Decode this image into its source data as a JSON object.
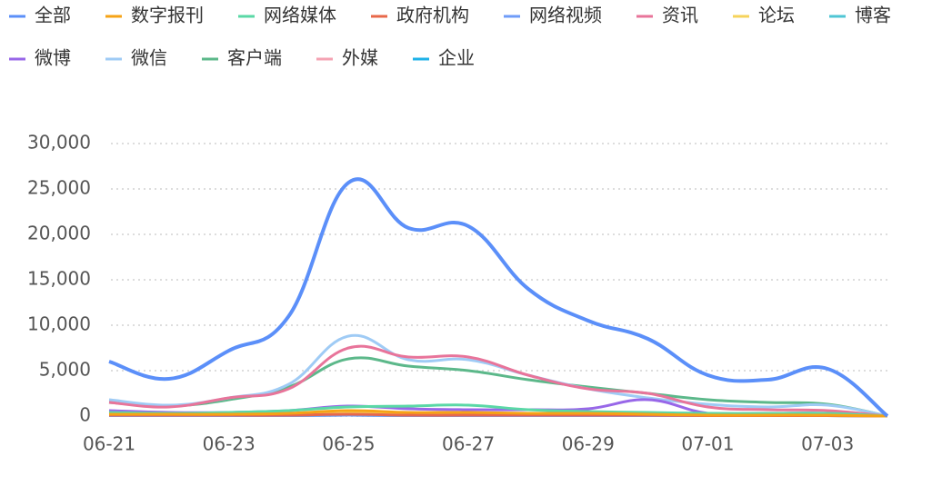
{
  "chart_data": {
    "type": "line",
    "categories": [
      "06-21",
      null,
      "06-23",
      null,
      "06-25",
      null,
      "06-27",
      null,
      "06-29",
      null,
      "07-01",
      null,
      "07-03",
      null
    ],
    "ylim": [
      0,
      30000
    ],
    "yticks": [
      0,
      {
        "value": 5000,
        "label": "5,000"
      },
      {
        "value": 10000,
        "label": "10,000"
      },
      {
        "value": 15000,
        "label": "15,000"
      },
      {
        "value": 20000,
        "label": "20,000"
      },
      {
        "value": 25000,
        "label": "25,000"
      },
      {
        "value": 30000,
        "label": "30,000"
      }
    ],
    "grid": true,
    "series": [
      {
        "name": "全部",
        "color": "#5b8ff9",
        "values": [
          6000,
          4100,
          7200,
          11000,
          25700,
          20700,
          20900,
          14000,
          10500,
          8500,
          4500,
          4000,
          5200,
          0
        ]
      },
      {
        "name": "数字报刊",
        "color": "#f6a316",
        "values": [
          200,
          200,
          200,
          300,
          600,
          400,
          400,
          300,
          300,
          200,
          100,
          100,
          100,
          0
        ]
      },
      {
        "name": "网络媒体",
        "color": "#5ad8a6",
        "values": [
          400,
          300,
          400,
          600,
          1000,
          1100,
          1200,
          700,
          500,
          400,
          300,
          300,
          300,
          0
        ]
      },
      {
        "name": "政府机构",
        "color": "#e8684a",
        "values": [
          100,
          100,
          100,
          100,
          200,
          100,
          100,
          100,
          100,
          100,
          50,
          50,
          50,
          0
        ]
      },
      {
        "name": "网络视频",
        "color": "#6f9cf8",
        "values": [
          50,
          50,
          50,
          50,
          100,
          50,
          50,
          50,
          50,
          50,
          50,
          50,
          50,
          0
        ]
      },
      {
        "name": "资讯",
        "color": "#e8749a",
        "values": [
          1500,
          1000,
          2000,
          3000,
          7500,
          6500,
          6500,
          4500,
          3000,
          2500,
          1000,
          700,
          600,
          0
        ]
      },
      {
        "name": "论坛",
        "color": "#f6d35b",
        "values": [
          100,
          100,
          100,
          100,
          300,
          200,
          200,
          100,
          100,
          100,
          50,
          50,
          50,
          0
        ]
      },
      {
        "name": "博客",
        "color": "#4fc6d4",
        "values": [
          50,
          50,
          50,
          50,
          100,
          50,
          50,
          50,
          50,
          50,
          50,
          50,
          50,
          0
        ]
      },
      {
        "name": "微博",
        "color": "#9867e8",
        "values": [
          600,
          400,
          400,
          600,
          1100,
          800,
          700,
          700,
          800,
          1800,
          300,
          300,
          300,
          0
        ]
      },
      {
        "name": "微信",
        "color": "#9fcbf5",
        "values": [
          1800,
          1200,
          2000,
          3500,
          8800,
          6200,
          6200,
          4500,
          3000,
          2000,
          1300,
          1000,
          1200,
          0
        ]
      },
      {
        "name": "客户端",
        "color": "#5cb88a",
        "values": [
          1500,
          1100,
          1800,
          3200,
          6300,
          5500,
          5000,
          4000,
          3200,
          2500,
          1800,
          1500,
          1300,
          0
        ]
      },
      {
        "name": "外媒",
        "color": "#f4a3b3",
        "values": [
          50,
          50,
          50,
          50,
          100,
          50,
          50,
          50,
          50,
          50,
          50,
          50,
          50,
          0
        ]
      },
      {
        "name": "企业",
        "color": "#1fb2e8",
        "values": [
          100,
          100,
          100,
          100,
          150,
          100,
          100,
          100,
          100,
          100,
          100,
          100,
          100,
          0
        ]
      }
    ]
  }
}
